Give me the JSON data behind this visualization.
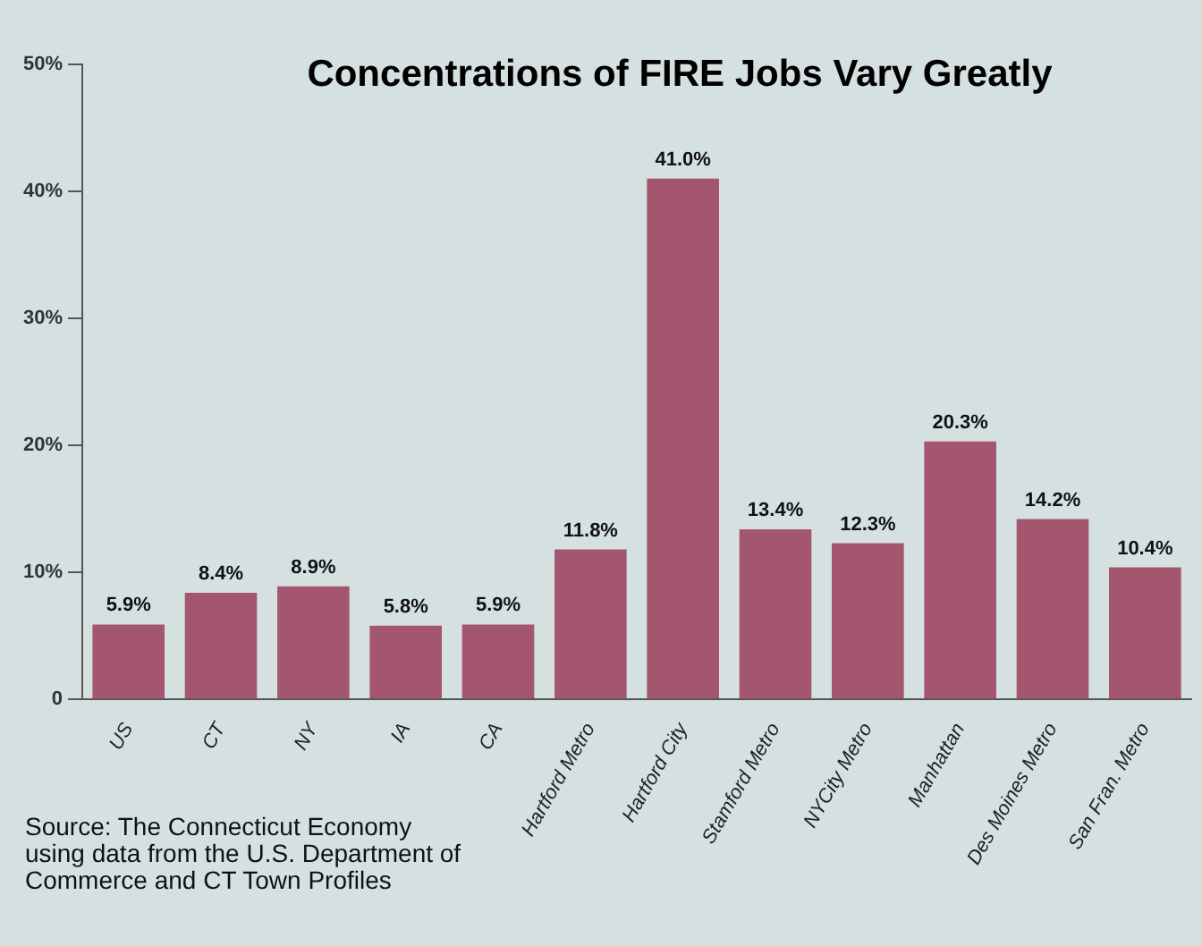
{
  "chart_data": {
    "type": "bar",
    "title": "Concentrations of FIRE Jobs Vary Greatly",
    "categories": [
      "US",
      "CT",
      "NY",
      "IA",
      "CA",
      "Hartford Metro",
      "Hartford City",
      "Stamford Metro",
      "NYCity Metro",
      "Manhattan",
      "Des Moines Metro",
      "San Fran. Metro"
    ],
    "values": [
      5.9,
      8.4,
      8.9,
      5.8,
      5.9,
      11.8,
      41.0,
      13.4,
      12.3,
      20.3,
      14.2,
      10.4
    ],
    "value_labels": [
      "5.9%",
      "8.4%",
      "8.9%",
      "5.8%",
      "5.9%",
      "11.8%",
      "41.0%",
      "13.4%",
      "12.3%",
      "20.3%",
      "14.2%",
      "10.4%"
    ],
    "color": "#a4566f",
    "ylim": [
      0,
      50
    ],
    "yticks": [
      {
        "value": 0,
        "label": "0"
      },
      {
        "value": 10,
        "label": "10%"
      },
      {
        "value": 20,
        "label": "20%"
      },
      {
        "value": 30,
        "label": "30%"
      },
      {
        "value": 40,
        "label": "40%"
      },
      {
        "value": 50,
        "label": "50%"
      }
    ],
    "grid": false,
    "legend": false,
    "annotations": [
      "Source: The Connecticut Economy using data from the U.S. Department of Commerce and CT Town Profiles"
    ]
  }
}
